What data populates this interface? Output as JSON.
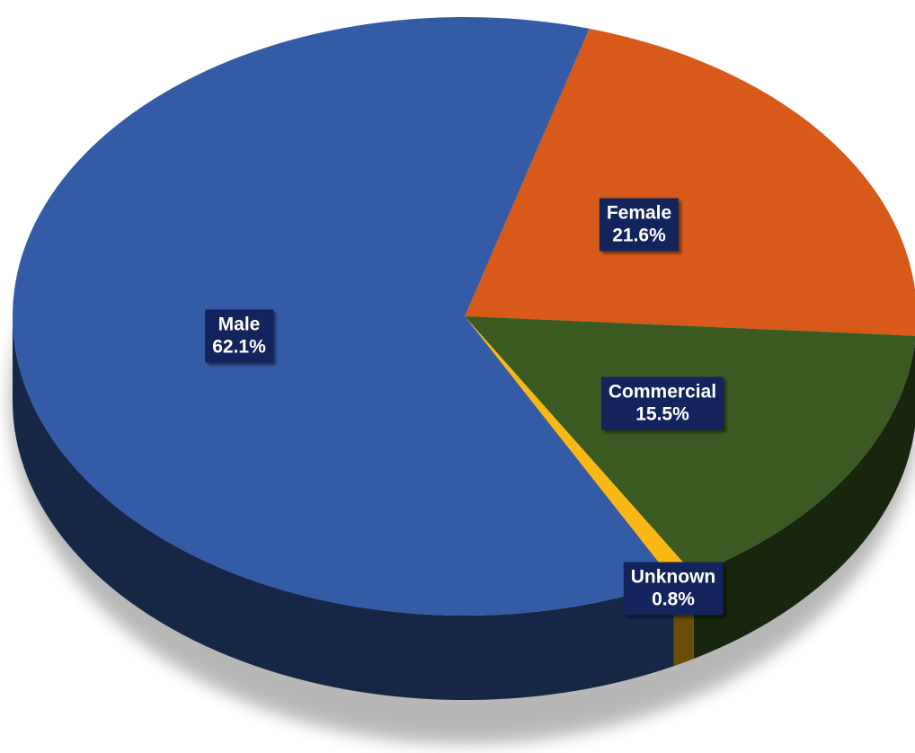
{
  "chart_data": {
    "type": "pie",
    "style": "3d",
    "start_angle_deg": 74,
    "direction": "clockwise",
    "slices": [
      {
        "name": "Female",
        "value": 21.6,
        "label": "21.6%",
        "color": "#d75a1a"
      },
      {
        "name": "Commercial",
        "value": 15.5,
        "label": "15.5%",
        "color": "#3b5a22"
      },
      {
        "name": "Unknown",
        "value": 0.8,
        "label": "0.8%",
        "color": "#fbb814"
      },
      {
        "name": "Male",
        "value": 62.1,
        "label": "62.1%",
        "color": "#345ca6"
      }
    ],
    "label_box_color": "#13235c",
    "label_text_color": "#ffffff"
  }
}
